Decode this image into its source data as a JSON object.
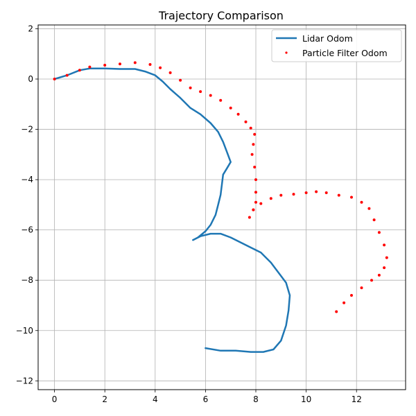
{
  "chart_data": {
    "type": "line",
    "title": "Trajectory Comparison",
    "xlabel": "",
    "ylabel": "",
    "xlim": [
      -0.65,
      13.95
    ],
    "ylim": [
      -12.35,
      2.15
    ],
    "xticks": [
      0,
      2,
      4,
      6,
      8,
      10,
      12
    ],
    "yticks": [
      -12,
      -10,
      -8,
      -6,
      -4,
      -2,
      0,
      2
    ],
    "grid": true,
    "legend_position": "top-right",
    "series": [
      {
        "name": "Lidar Odom",
        "style": "line",
        "color": "#1f77b4",
        "points": [
          [
            0.0,
            0.0
          ],
          [
            0.5,
            0.15
          ],
          [
            1.0,
            0.35
          ],
          [
            1.4,
            0.42
          ],
          [
            2.0,
            0.42
          ],
          [
            2.6,
            0.4
          ],
          [
            3.2,
            0.4
          ],
          [
            3.6,
            0.3
          ],
          [
            4.0,
            0.15
          ],
          [
            4.3,
            -0.1
          ],
          [
            4.6,
            -0.4
          ],
          [
            5.0,
            -0.75
          ],
          [
            5.4,
            -1.15
          ],
          [
            5.8,
            -1.4
          ],
          [
            6.2,
            -1.75
          ],
          [
            6.5,
            -2.1
          ],
          [
            6.7,
            -2.5
          ],
          [
            6.85,
            -2.9
          ],
          [
            7.0,
            -3.3
          ],
          [
            6.85,
            -3.55
          ],
          [
            6.7,
            -3.8
          ],
          [
            6.65,
            -4.2
          ],
          [
            6.6,
            -4.6
          ],
          [
            6.5,
            -5.0
          ],
          [
            6.4,
            -5.4
          ],
          [
            6.2,
            -5.8
          ],
          [
            6.0,
            -6.05
          ],
          [
            5.7,
            -6.3
          ],
          [
            5.5,
            -6.4
          ],
          [
            5.8,
            -6.25
          ],
          [
            6.2,
            -6.15
          ],
          [
            6.6,
            -6.15
          ],
          [
            7.0,
            -6.3
          ],
          [
            7.4,
            -6.5
          ],
          [
            7.8,
            -6.7
          ],
          [
            8.2,
            -6.9
          ],
          [
            8.6,
            -7.3
          ],
          [
            8.9,
            -7.7
          ],
          [
            9.2,
            -8.1
          ],
          [
            9.35,
            -8.6
          ],
          [
            9.3,
            -9.2
          ],
          [
            9.2,
            -9.8
          ],
          [
            9.0,
            -10.4
          ],
          [
            8.7,
            -10.75
          ],
          [
            8.3,
            -10.85
          ],
          [
            7.8,
            -10.85
          ],
          [
            7.2,
            -10.8
          ],
          [
            6.6,
            -10.8
          ],
          [
            6.0,
            -10.7
          ]
        ]
      },
      {
        "name": "Particle Filter Odom",
        "style": "scatter",
        "color": "#ff0000",
        "points": [
          [
            0.0,
            0.0
          ],
          [
            0.5,
            0.15
          ],
          [
            1.0,
            0.35
          ],
          [
            1.4,
            0.48
          ],
          [
            2.0,
            0.55
          ],
          [
            2.6,
            0.6
          ],
          [
            3.2,
            0.65
          ],
          [
            3.8,
            0.58
          ],
          [
            4.2,
            0.45
          ],
          [
            4.6,
            0.25
          ],
          [
            5.0,
            -0.05
          ],
          [
            5.4,
            -0.35
          ],
          [
            5.8,
            -0.5
          ],
          [
            6.2,
            -0.65
          ],
          [
            6.6,
            -0.85
          ],
          [
            7.0,
            -1.15
          ],
          [
            7.3,
            -1.4
          ],
          [
            7.6,
            -1.7
          ],
          [
            7.8,
            -1.95
          ],
          [
            7.95,
            -2.2
          ],
          [
            7.9,
            -2.6
          ],
          [
            7.85,
            -3.0
          ],
          [
            7.95,
            -3.5
          ],
          [
            8.0,
            -4.0
          ],
          [
            8.0,
            -4.5
          ],
          [
            8.0,
            -4.9
          ],
          [
            7.9,
            -5.2
          ],
          [
            7.75,
            -5.5
          ],
          [
            7.9,
            -5.2
          ],
          [
            8.2,
            -4.95
          ],
          [
            8.6,
            -4.75
          ],
          [
            9.0,
            -4.62
          ],
          [
            9.5,
            -4.58
          ],
          [
            10.0,
            -4.52
          ],
          [
            10.4,
            -4.48
          ],
          [
            10.8,
            -4.52
          ],
          [
            11.3,
            -4.62
          ],
          [
            11.8,
            -4.7
          ],
          [
            12.2,
            -4.9
          ],
          [
            12.5,
            -5.15
          ],
          [
            12.7,
            -5.6
          ],
          [
            12.9,
            -6.1
          ],
          [
            13.1,
            -6.6
          ],
          [
            13.2,
            -7.1
          ],
          [
            13.1,
            -7.5
          ],
          [
            12.9,
            -7.8
          ],
          [
            12.6,
            -8.0
          ],
          [
            12.2,
            -8.3
          ],
          [
            11.8,
            -8.6
          ],
          [
            11.5,
            -8.9
          ],
          [
            11.2,
            -9.25
          ]
        ]
      }
    ]
  }
}
